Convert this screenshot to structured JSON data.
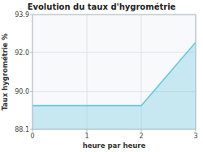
{
  "chart_data": {
    "type": "area",
    "title": "Evolution du taux d'hygrométrie",
    "xlabel": "heure par heure",
    "ylabel": "Taux hygrométrie %",
    "x": [
      0,
      1,
      2,
      3
    ],
    "values": [
      89.3,
      89.3,
      89.3,
      92.5
    ],
    "xlim": [
      0,
      3
    ],
    "ylim": [
      88.1,
      93.9
    ],
    "xticks": [
      0,
      1,
      2,
      3
    ],
    "yticks": [
      88.1,
      {
        "value": 90.0,
        "label": "90.0"
      },
      {
        "value": 92.0,
        "label": "92.0"
      },
      93.9
    ],
    "color": "#6cc8e0",
    "grid": true
  }
}
